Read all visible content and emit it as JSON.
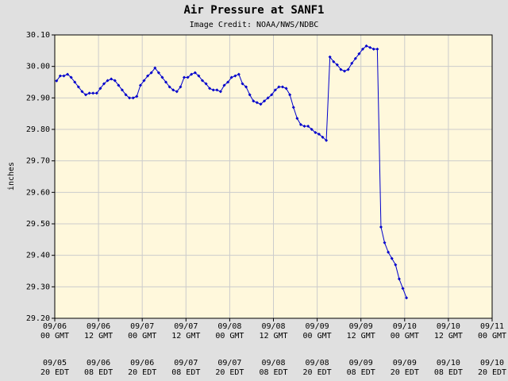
{
  "chart_data": {
    "type": "line",
    "title": "Air Pressure at SANF1",
    "subtitle": "Image Credit: NOAA/NWS/NDBC",
    "ylabel": "inches",
    "color": "#0000cc",
    "grid": true,
    "xlim": [
      0,
      120
    ],
    "xticks": [
      {
        "value": 0,
        "label": "09/06\n00 GMT"
      },
      {
        "value": 12,
        "label": "09/06\n12 GMT"
      },
      {
        "value": 24,
        "label": "09/07\n00 GMT"
      },
      {
        "value": 36,
        "label": "09/07\n12 GMT"
      },
      {
        "value": 48,
        "label": "09/08\n00 GMT"
      },
      {
        "value": 60,
        "label": "09/08\n12 GMT"
      },
      {
        "value": 72,
        "label": "09/09\n00 GMT"
      },
      {
        "value": 84,
        "label": "09/09\n12 GMT"
      },
      {
        "value": 96,
        "label": "09/10\n00 GMT"
      },
      {
        "value": 108,
        "label": "09/10\n12 GMT"
      },
      {
        "value": 120,
        "label": "09/11\n00 GMT"
      }
    ],
    "local_xtick_labels": [
      "09/05\n20 EDT",
      "09/06\n08 EDT",
      "09/06\n20 EDT",
      "09/07\n08 EDT",
      "09/07\n20 EDT",
      "09/08\n08 EDT",
      "09/08\n20 EDT",
      "09/09\n08 EDT",
      "09/09\n20 EDT",
      "09/10\n08 EDT",
      "09/10\n20 EDT"
    ],
    "ylim": [
      29.2,
      30.1
    ],
    "yticks": [
      {
        "value": 29.2,
        "label": "29.20"
      },
      {
        "value": 29.3,
        "label": "29.30"
      },
      {
        "value": 29.4,
        "label": "29.40"
      },
      {
        "value": 29.5,
        "label": "29.50"
      },
      {
        "value": 29.6,
        "label": "29.60"
      },
      {
        "value": 29.7,
        "label": "29.70"
      },
      {
        "value": 29.8,
        "label": "29.80"
      },
      {
        "value": 29.9,
        "label": "29.90"
      },
      {
        "value": 30.0,
        "label": "30.00"
      },
      {
        "value": 30.1,
        "label": "30.10"
      }
    ],
    "x": [
      0.5,
      1.5,
      2.5,
      3.5,
      4.5,
      5.5,
      6.5,
      7.5,
      8.5,
      9.5,
      10.5,
      11.5,
      12.5,
      13.5,
      14.5,
      15.5,
      16.5,
      17.5,
      18.5,
      19.5,
      20.5,
      21.5,
      22.5,
      23.5,
      24.5,
      25.5,
      26.5,
      27.5,
      28.5,
      29.5,
      30.5,
      31.5,
      32.5,
      33.5,
      34.5,
      35.5,
      36.5,
      37.5,
      38.5,
      39.5,
      40.5,
      41.5,
      42.5,
      43.5,
      44.5,
      45.5,
      46.5,
      47.5,
      48.5,
      49.5,
      50.5,
      51.5,
      52.5,
      53.5,
      54.5,
      55.5,
      56.5,
      57.5,
      58.5,
      59.5,
      60.5,
      61.5,
      62.5,
      63.5,
      64.5,
      65.5,
      66.5,
      67.5,
      68.5,
      69.5,
      70.5,
      71.5,
      72.5,
      73.5,
      74.5,
      75.5,
      76.5,
      77.5,
      78.5,
      79.5,
      80.5,
      81.5,
      82.5,
      83.5,
      84.5,
      85.5,
      86.5,
      87.5,
      88.5,
      89.5,
      90.5,
      91.5,
      92.5,
      93.5,
      94.5,
      95.5,
      96.5
    ],
    "values": [
      29.954,
      29.97,
      29.97,
      29.975,
      29.965,
      29.95,
      29.935,
      29.92,
      29.91,
      29.915,
      29.915,
      29.915,
      29.93,
      29.945,
      29.955,
      29.96,
      29.955,
      29.94,
      29.925,
      29.91,
      29.9,
      29.9,
      29.905,
      29.94,
      29.955,
      29.97,
      29.98,
      29.995,
      29.98,
      29.965,
      29.95,
      29.935,
      29.925,
      29.92,
      29.935,
      29.965,
      29.965,
      29.975,
      29.98,
      29.97,
      29.955,
      29.945,
      29.93,
      29.925,
      29.925,
      29.92,
      29.94,
      29.95,
      29.965,
      29.97,
      29.975,
      29.945,
      29.935,
      29.91,
      29.89,
      29.885,
      29.88,
      29.89,
      29.9,
      29.91,
      29.925,
      29.935,
      29.935,
      29.93,
      29.91,
      29.87,
      29.835,
      29.815,
      29.81,
      29.81,
      29.8,
      29.79,
      29.785,
      29.775,
      29.765,
      30.03,
      30.015,
      30.005,
      29.99,
      29.985,
      29.99,
      30.01,
      30.025,
      30.04,
      30.055,
      30.065,
      30.06,
      30.055,
      30.055,
      29.49,
      29.44,
      29.41,
      29.39,
      29.37,
      29.325,
      29.295,
      29.265
    ]
  }
}
